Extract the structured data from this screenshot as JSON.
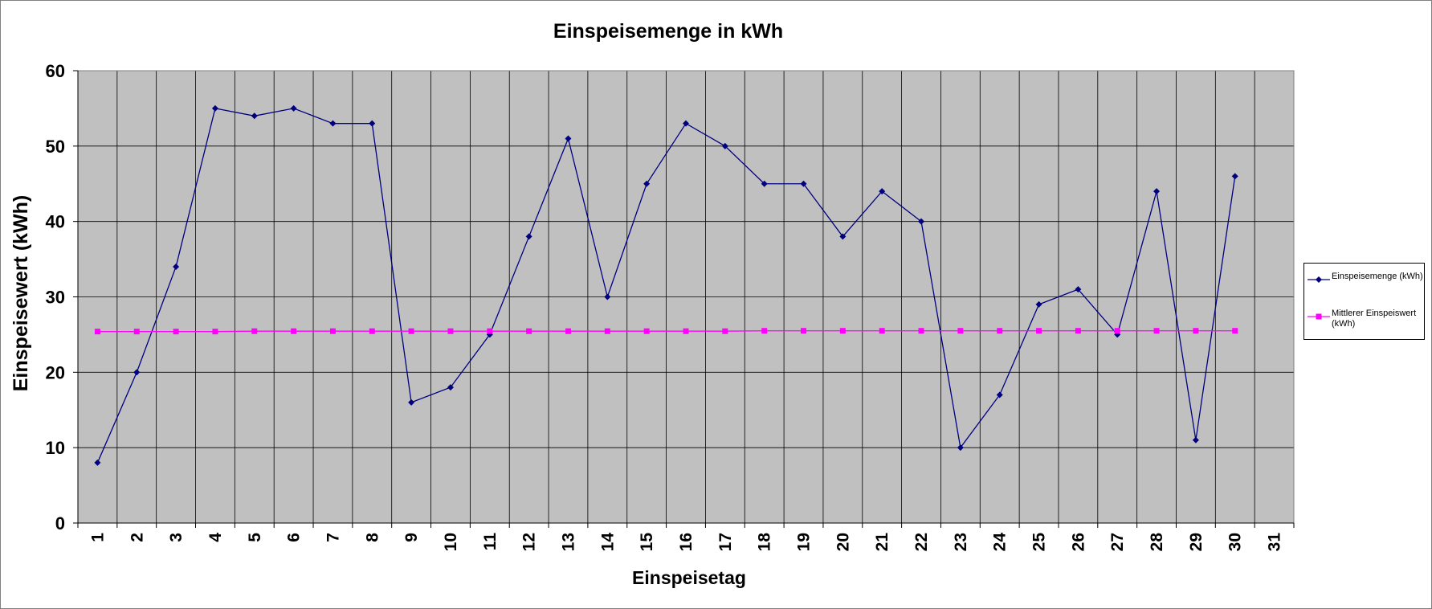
{
  "chart_data": {
    "type": "line",
    "title": "Einspeisemenge in kWh",
    "xlabel": "Einspeisetag",
    "ylabel": "Einspeisewert  (kWh)",
    "categories": [
      "1",
      "2",
      "3",
      "4",
      "5",
      "6",
      "7",
      "8",
      "9",
      "10",
      "11",
      "12",
      "13",
      "14",
      "15",
      "16",
      "17",
      "18",
      "19",
      "20",
      "21",
      "22",
      "23",
      "24",
      "25",
      "26",
      "27",
      "28",
      "29",
      "30",
      "31"
    ],
    "ylim": [
      0,
      60
    ],
    "yticks": [
      0,
      10,
      20,
      30,
      40,
      50,
      60
    ],
    "grid": true,
    "plot_background": "#c0c0c0",
    "legend_position": "right",
    "series": [
      {
        "name": "Einspeisemenge (kWh)",
        "color": "#000080",
        "marker": "diamond",
        "values": [
          8,
          20,
          34,
          55,
          54,
          55,
          53,
          53,
          16,
          18,
          25,
          38,
          51,
          30,
          45,
          53,
          50,
          45,
          45,
          38,
          44,
          40,
          10,
          17,
          29,
          31,
          25,
          44,
          11,
          46,
          null
        ]
      },
      {
        "name": "Mittlerer Einspeiswert (kWh)",
        "color": "#ff00ff",
        "marker": "square",
        "values": [
          25.4,
          25.4,
          25.4,
          25.4,
          25.45,
          25.45,
          25.45,
          25.45,
          25.45,
          25.45,
          25.45,
          25.45,
          25.45,
          25.45,
          25.45,
          25.45,
          25.45,
          25.5,
          25.5,
          25.5,
          25.5,
          25.5,
          25.5,
          25.5,
          25.5,
          25.5,
          25.5,
          25.5,
          25.5,
          25.5,
          null
        ]
      }
    ]
  }
}
